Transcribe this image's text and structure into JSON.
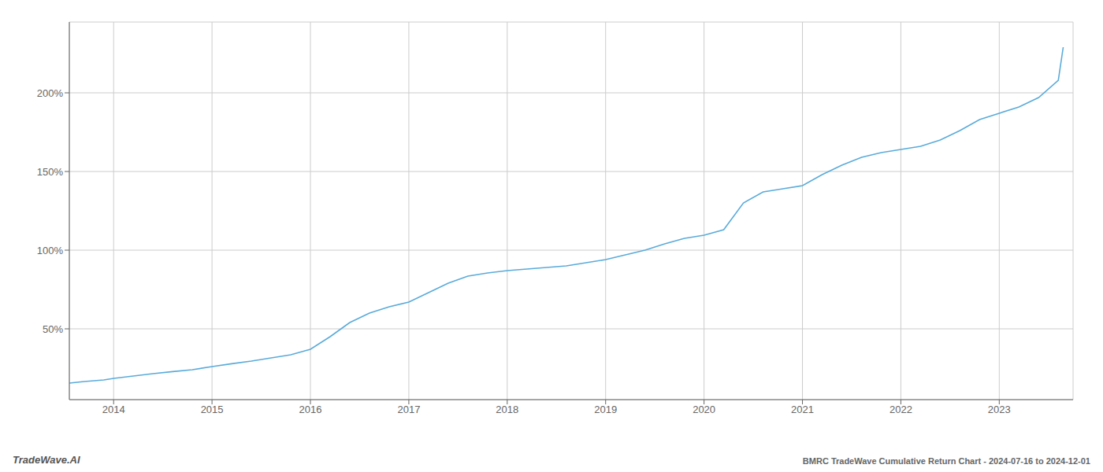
{
  "chart_data": {
    "type": "line",
    "title": "BMRC TradeWave Cumulative Return Chart - 2024-07-16 to 2024-12-01",
    "annotations": [
      "TradeWave.AI"
    ],
    "x": [
      2013.55,
      2013.7,
      2013.9,
      2014.0,
      2014.2,
      2014.4,
      2014.6,
      2014.8,
      2015.0,
      2015.2,
      2015.4,
      2015.6,
      2015.8,
      2016.0,
      2016.2,
      2016.4,
      2016.6,
      2016.8,
      2017.0,
      2017.2,
      2017.4,
      2017.6,
      2017.8,
      2018.0,
      2018.2,
      2018.4,
      2018.6,
      2018.8,
      2019.0,
      2019.2,
      2019.4,
      2019.6,
      2019.8,
      2020.0,
      2020.2,
      2020.4,
      2020.6,
      2020.8,
      2021.0,
      2021.2,
      2021.4,
      2021.6,
      2021.8,
      2022.0,
      2022.2,
      2022.4,
      2022.6,
      2022.8,
      2023.0,
      2023.2,
      2023.4,
      2023.6,
      2023.65
    ],
    "values": [
      0.155,
      0.165,
      0.175,
      0.185,
      0.2,
      0.215,
      0.228,
      0.24,
      0.26,
      0.278,
      0.295,
      0.315,
      0.335,
      0.37,
      0.45,
      0.54,
      0.6,
      0.64,
      0.67,
      0.73,
      0.79,
      0.835,
      0.855,
      0.87,
      0.88,
      0.89,
      0.9,
      0.92,
      0.94,
      0.97,
      1.0,
      1.04,
      1.075,
      1.095,
      1.13,
      1.3,
      1.37,
      1.39,
      1.41,
      1.48,
      1.54,
      1.59,
      1.62,
      1.64,
      1.66,
      1.7,
      1.76,
      1.83,
      1.87,
      1.91,
      1.97,
      2.08,
      2.29
    ],
    "color": "#5aabda",
    "xlim": [
      2013.55,
      2023.75
    ],
    "xticks": [
      2014,
      2015,
      2016,
      2017,
      2018,
      2019,
      2020,
      2021,
      2022,
      2023
    ],
    "ylim": [
      0.05,
      2.45
    ],
    "yticks": [
      {
        "value": 0.5,
        "label": "50%"
      },
      {
        "value": 1.0,
        "label": "100%"
      },
      {
        "value": 1.5,
        "label": "150%"
      },
      {
        "value": 2.0,
        "label": "200%"
      }
    ],
    "grid": true
  }
}
